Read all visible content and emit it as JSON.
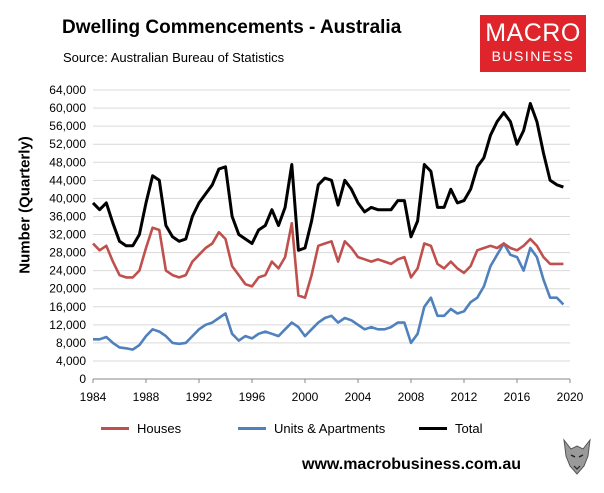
{
  "header": {
    "title": "Dwelling Commencements - Australia",
    "source": "Source: Australian Bureau of Statistics"
  },
  "logo": {
    "line1": "MACRO",
    "line2": "BUSINESS"
  },
  "footer": {
    "url": "www.macrobusiness.com.au"
  },
  "colors": {
    "houses": "#c0504d",
    "units": "#4f81bd",
    "total": "#000000",
    "logo_red": "#e0242b"
  },
  "chart_data": {
    "type": "line",
    "title": "Dwelling Commencements - Australia",
    "ylabel": "Number (Quarterly)",
    "xlabel": "",
    "xlim": [
      1984,
      2020
    ],
    "ylim": [
      0,
      64000
    ],
    "x_ticks": [
      "1984",
      "1988",
      "1992",
      "1996",
      "2000",
      "2004",
      "2008",
      "2012",
      "2016",
      "2020"
    ],
    "y_ticks": [
      "0",
      "4,000",
      "8,000",
      "12,000",
      "16,000",
      "20,000",
      "24,000",
      "28,000",
      "32,000",
      "36,000",
      "40,000",
      "44,000",
      "48,000",
      "52,000",
      "56,000",
      "60,000",
      "64,000"
    ],
    "grid": "horizontal",
    "legend": "bottom",
    "series": [
      {
        "name": "Houses",
        "x": [
          1984.0,
          1984.5,
          1985.0,
          1985.5,
          1986.0,
          1986.5,
          1987.0,
          1987.5,
          1988.0,
          1988.5,
          1989.0,
          1989.5,
          1990.0,
          1990.5,
          1991.0,
          1991.5,
          1992.0,
          1992.5,
          1993.0,
          1993.5,
          1994.0,
          1994.5,
          1995.0,
          1995.5,
          1996.0,
          1996.5,
          1997.0,
          1997.5,
          1998.0,
          1998.5,
          1999.0,
          1999.5,
          2000.0,
          2000.5,
          2001.0,
          2001.5,
          2002.0,
          2002.5,
          2003.0,
          2003.5,
          2004.0,
          2004.5,
          2005.0,
          2005.5,
          2006.0,
          2006.5,
          2007.0,
          2007.5,
          2008.0,
          2008.5,
          2009.0,
          2009.5,
          2010.0,
          2010.5,
          2011.0,
          2011.5,
          2012.0,
          2012.5,
          2013.0,
          2013.5,
          2014.0,
          2014.5,
          2015.0,
          2015.5,
          2016.0,
          2016.5,
          2017.0,
          2017.5,
          2018.0,
          2018.5,
          2019.0,
          2019.5
        ],
        "values": [
          30000,
          28500,
          29500,
          26000,
          23000,
          22500,
          22500,
          24000,
          29000,
          33500,
          33000,
          24000,
          23000,
          22500,
          23000,
          26000,
          27500,
          29000,
          30000,
          32500,
          31000,
          25000,
          23000,
          21000,
          20500,
          22500,
          23000,
          26000,
          24500,
          27000,
          34500,
          18500,
          18000,
          23000,
          29500,
          30000,
          30500,
          26000,
          30500,
          29000,
          27000,
          26500,
          26000,
          26500,
          26000,
          25500,
          26500,
          27000,
          22500,
          24500,
          30000,
          29500,
          25500,
          24500,
          26000,
          24500,
          23500,
          25000,
          28500,
          29000,
          29500,
          29000,
          30000,
          29000,
          28500,
          29500,
          31000,
          29500,
          27000,
          25500,
          25500,
          25500
        ]
      },
      {
        "name": "Units & Apartments",
        "x": [
          1984.0,
          1984.5,
          1985.0,
          1985.5,
          1986.0,
          1986.5,
          1987.0,
          1987.5,
          1988.0,
          1988.5,
          1989.0,
          1989.5,
          1990.0,
          1990.5,
          1991.0,
          1991.5,
          1992.0,
          1992.5,
          1993.0,
          1993.5,
          1994.0,
          1994.5,
          1995.0,
          1995.5,
          1996.0,
          1996.5,
          1997.0,
          1997.5,
          1998.0,
          1998.5,
          1999.0,
          1999.5,
          2000.0,
          2000.5,
          2001.0,
          2001.5,
          2002.0,
          2002.5,
          2003.0,
          2003.5,
          2004.0,
          2004.5,
          2005.0,
          2005.5,
          2006.0,
          2006.5,
          2007.0,
          2007.5,
          2008.0,
          2008.5,
          2009.0,
          2009.5,
          2010.0,
          2010.5,
          2011.0,
          2011.5,
          2012.0,
          2012.5,
          2013.0,
          2013.5,
          2014.0,
          2014.5,
          2015.0,
          2015.5,
          2016.0,
          2016.5,
          2017.0,
          2017.5,
          2018.0,
          2018.5,
          2019.0,
          2019.5
        ],
        "values": [
          8800,
          8800,
          9300,
          8000,
          7000,
          6800,
          6500,
          7500,
          9500,
          11000,
          10500,
          9500,
          8000,
          7800,
          8000,
          9500,
          11000,
          12000,
          12500,
          13500,
          14500,
          10000,
          8500,
          9500,
          9000,
          10000,
          10500,
          10000,
          9500,
          11000,
          12500,
          11500,
          9500,
          11000,
          12500,
          13500,
          14000,
          12500,
          13500,
          13000,
          12000,
          11000,
          11500,
          11000,
          11000,
          11500,
          12500,
          12500,
          8000,
          10000,
          16000,
          18000,
          14000,
          14000,
          15500,
          14500,
          15000,
          17000,
          18000,
          20500,
          25000,
          27500,
          30000,
          27500,
          27000,
          24000,
          29000,
          27000,
          22000,
          18000,
          18000,
          16500
        ]
      },
      {
        "name": "Total",
        "x": [
          1984.0,
          1984.5,
          1985.0,
          1985.5,
          1986.0,
          1986.5,
          1987.0,
          1987.5,
          1988.0,
          1988.5,
          1989.0,
          1989.5,
          1990.0,
          1990.5,
          1991.0,
          1991.5,
          1992.0,
          1992.5,
          1993.0,
          1993.5,
          1994.0,
          1994.5,
          1995.0,
          1995.5,
          1996.0,
          1996.5,
          1997.0,
          1997.5,
          1998.0,
          1998.5,
          1999.0,
          1999.5,
          2000.0,
          2000.5,
          2001.0,
          2001.5,
          2002.0,
          2002.5,
          2003.0,
          2003.5,
          2004.0,
          2004.5,
          2005.0,
          2005.5,
          2006.0,
          2006.5,
          2007.0,
          2007.5,
          2008.0,
          2008.5,
          2009.0,
          2009.5,
          2010.0,
          2010.5,
          2011.0,
          2011.5,
          2012.0,
          2012.5,
          2013.0,
          2013.5,
          2014.0,
          2014.5,
          2015.0,
          2015.5,
          2016.0,
          2016.5,
          2017.0,
          2017.5,
          2018.0,
          2018.5,
          2019.0,
          2019.5
        ],
        "values": [
          39000,
          37500,
          39000,
          34500,
          30500,
          29500,
          29500,
          32000,
          39000,
          45000,
          44000,
          34000,
          31500,
          30500,
          31000,
          36000,
          39000,
          41000,
          43000,
          46500,
          47000,
          36000,
          32000,
          31000,
          30000,
          33000,
          34000,
          37500,
          34000,
          38000,
          47500,
          28500,
          29000,
          35000,
          43000,
          44500,
          44000,
          38500,
          44000,
          42000,
          39000,
          37000,
          38000,
          37500,
          37500,
          37500,
          39500,
          39500,
          31500,
          35000,
          47500,
          46000,
          38000,
          38000,
          42000,
          39000,
          39500,
          42000,
          47000,
          49000,
          54000,
          57000,
          59000,
          57000,
          52000,
          55000,
          61000,
          57000,
          50000,
          44000,
          43000,
          42500
        ]
      }
    ]
  }
}
